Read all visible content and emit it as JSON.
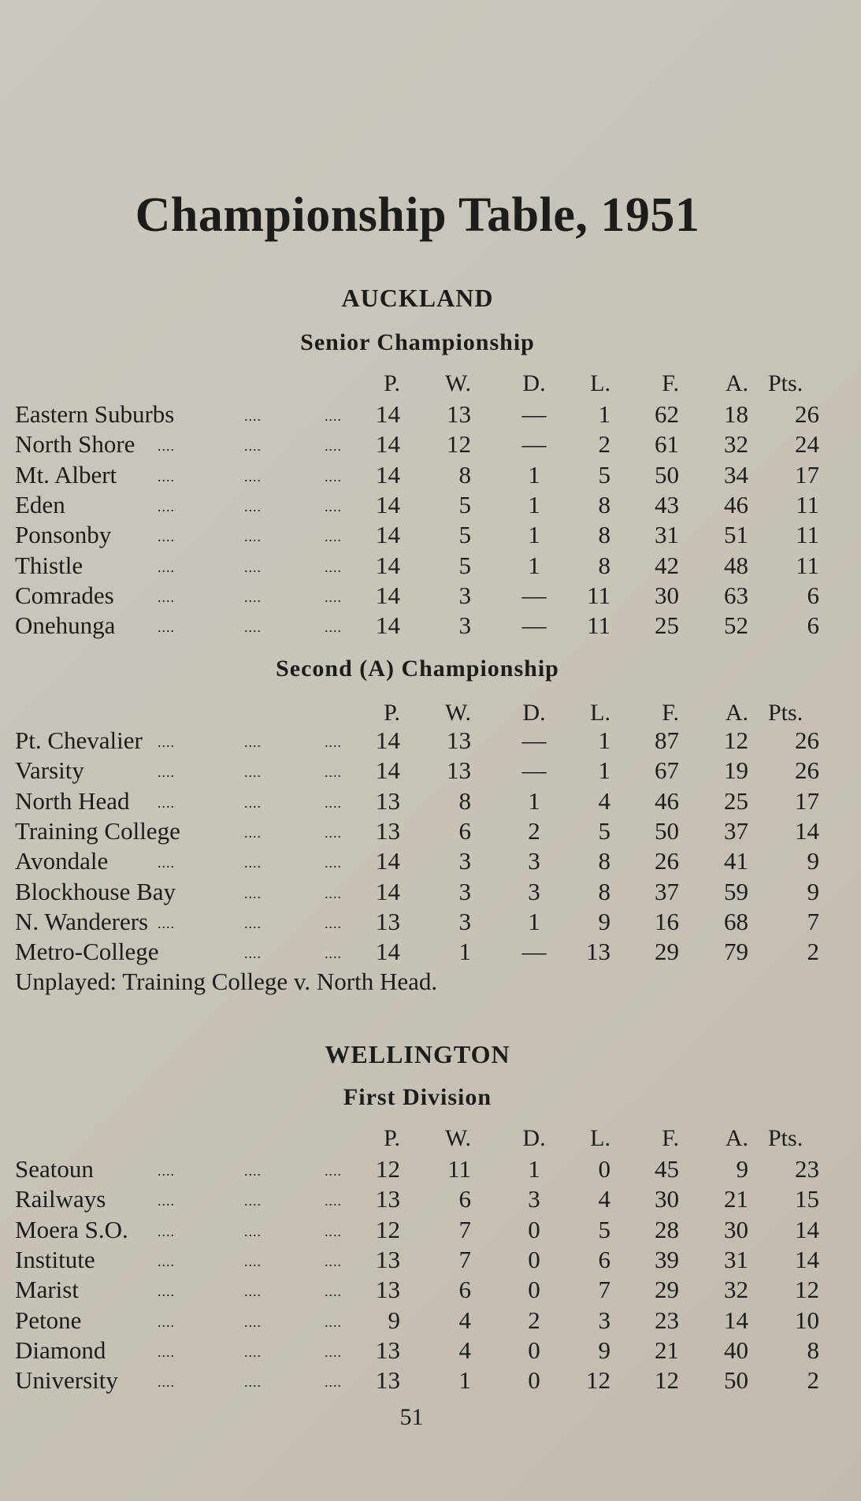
{
  "title": "Championship Table, 1951",
  "columns": [
    "P.",
    "W.",
    "D.",
    "L.",
    "F.",
    "A.",
    "Pts."
  ],
  "sections": [
    {
      "region": "AUCKLAND",
      "division": "Senior Championship",
      "rows": [
        {
          "team": "Eastern Suburbs",
          "values": [
            "14",
            "13",
            "—",
            "1",
            "62",
            "18",
            "26"
          ]
        },
        {
          "team": "North Shore",
          "values": [
            "14",
            "12",
            "—",
            "2",
            "61",
            "32",
            "24"
          ]
        },
        {
          "team": "Mt. Albert",
          "values": [
            "14",
            "8",
            "1",
            "5",
            "50",
            "34",
            "17"
          ]
        },
        {
          "team": "Eden",
          "values": [
            "14",
            "5",
            "1",
            "8",
            "43",
            "46",
            "11"
          ]
        },
        {
          "team": "Ponsonby",
          "values": [
            "14",
            "5",
            "1",
            "8",
            "31",
            "51",
            "11"
          ]
        },
        {
          "team": "Thistle",
          "values": [
            "14",
            "5",
            "1",
            "8",
            "42",
            "48",
            "11"
          ]
        },
        {
          "team": "Comrades",
          "values": [
            "14",
            "3",
            "—",
            "11",
            "30",
            "63",
            "6"
          ]
        },
        {
          "team": "Onehunga",
          "values": [
            "14",
            "3",
            "—",
            "11",
            "25",
            "52",
            "6"
          ]
        }
      ]
    },
    {
      "region": "",
      "division": "Second (A) Championship",
      "rows": [
        {
          "team": "Pt. Chevalier",
          "values": [
            "14",
            "13",
            "—",
            "1",
            "87",
            "12",
            "26"
          ]
        },
        {
          "team": "Varsity",
          "values": [
            "14",
            "13",
            "—",
            "1",
            "67",
            "19",
            "26"
          ]
        },
        {
          "team": "North Head",
          "values": [
            "13",
            "8",
            "1",
            "4",
            "46",
            "25",
            "17"
          ]
        },
        {
          "team": "Training College",
          "values": [
            "13",
            "6",
            "2",
            "5",
            "50",
            "37",
            "14"
          ]
        },
        {
          "team": "Avondale",
          "values": [
            "14",
            "3",
            "3",
            "8",
            "26",
            "41",
            "9"
          ]
        },
        {
          "team": "Blockhouse Bay",
          "values": [
            "14",
            "3",
            "3",
            "8",
            "37",
            "59",
            "9"
          ]
        },
        {
          "team": "N. Wanderers",
          "values": [
            "13",
            "3",
            "1",
            "9",
            "16",
            "68",
            "7"
          ]
        },
        {
          "team": "Metro-College",
          "values": [
            "14",
            "1",
            "—",
            "13",
            "29",
            "79",
            "2"
          ]
        }
      ],
      "note": "Unplayed: Training College v. North Head."
    },
    {
      "region": "WELLINGTON",
      "division": "First Division",
      "rows": [
        {
          "team": "Seatoun",
          "values": [
            "12",
            "11",
            "1",
            "0",
            "45",
            "9",
            "23"
          ]
        },
        {
          "team": "Railways",
          "values": [
            "13",
            "6",
            "3",
            "4",
            "30",
            "21",
            "15"
          ]
        },
        {
          "team": "Moera S.O.",
          "values": [
            "12",
            "7",
            "0",
            "5",
            "28",
            "30",
            "14"
          ]
        },
        {
          "team": "Institute",
          "values": [
            "13",
            "7",
            "0",
            "6",
            "39",
            "31",
            "14"
          ]
        },
        {
          "team": "Marist",
          "values": [
            "13",
            "6",
            "0",
            "7",
            "29",
            "32",
            "12"
          ]
        },
        {
          "team": "Petone",
          "values": [
            "9",
            "4",
            "2",
            "3",
            "23",
            "14",
            "10"
          ]
        },
        {
          "team": "Diamond",
          "values": [
            "13",
            "4",
            "0",
            "9",
            "21",
            "40",
            "8"
          ]
        },
        {
          "team": "University",
          "values": [
            "13",
            "1",
            "0",
            "12",
            "12",
            "50",
            "2"
          ]
        }
      ]
    }
  ],
  "page_number": "51"
}
